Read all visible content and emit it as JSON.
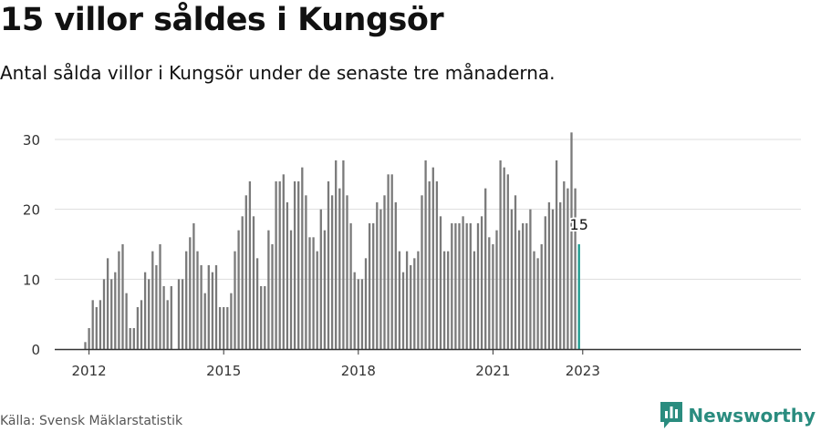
{
  "title": "15 villor såldes i Kungsör",
  "subtitle": "Antal sålda villor i Kungsör under de senaste tre månaderna.",
  "source": "Källa: Svensk Mäklarstatistik",
  "brand": "Newsworthy",
  "colors": {
    "bar": "#7a7a7a",
    "highlight": "#1a9a8e",
    "grid": "#dddddd",
    "axis": "#333333",
    "brand": "#2a8c7f"
  },
  "chart_data": {
    "type": "bar",
    "start_year": 2011,
    "start_month": 12,
    "values": [
      1,
      3,
      7,
      6,
      7,
      10,
      13,
      10,
      11,
      14,
      15,
      8,
      3,
      3,
      6,
      7,
      11,
      10,
      14,
      12,
      15,
      9,
      7,
      9,
      null,
      10,
      10,
      14,
      16,
      18,
      14,
      12,
      8,
      12,
      11,
      12,
      6,
      6,
      6,
      8,
      14,
      17,
      19,
      22,
      24,
      19,
      13,
      9,
      9,
      17,
      15,
      24,
      24,
      25,
      21,
      17,
      24,
      24,
      26,
      22,
      16,
      16,
      14,
      20,
      17,
      24,
      22,
      27,
      23,
      27,
      22,
      18,
      11,
      10,
      10,
      13,
      18,
      18,
      21,
      20,
      22,
      25,
      25,
      21,
      14,
      11,
      14,
      12,
      13,
      14,
      22,
      27,
      24,
      26,
      24,
      19,
      14,
      14,
      18,
      18,
      18,
      19,
      18,
      18,
      14,
      18,
      19,
      23,
      16,
      15,
      17,
      27,
      26,
      25,
      20,
      22,
      17,
      18,
      18,
      20,
      14,
      13,
      15,
      19,
      21,
      20,
      27,
      21,
      24,
      23,
      31,
      23,
      15
    ],
    "highlight_index": 132,
    "highlight_label": "15",
    "yticks": [
      0,
      10,
      20,
      30
    ],
    "ylim": [
      0,
      33
    ],
    "xticks": [
      "2012",
      "2015",
      "2018",
      "2021",
      "2023"
    ]
  }
}
